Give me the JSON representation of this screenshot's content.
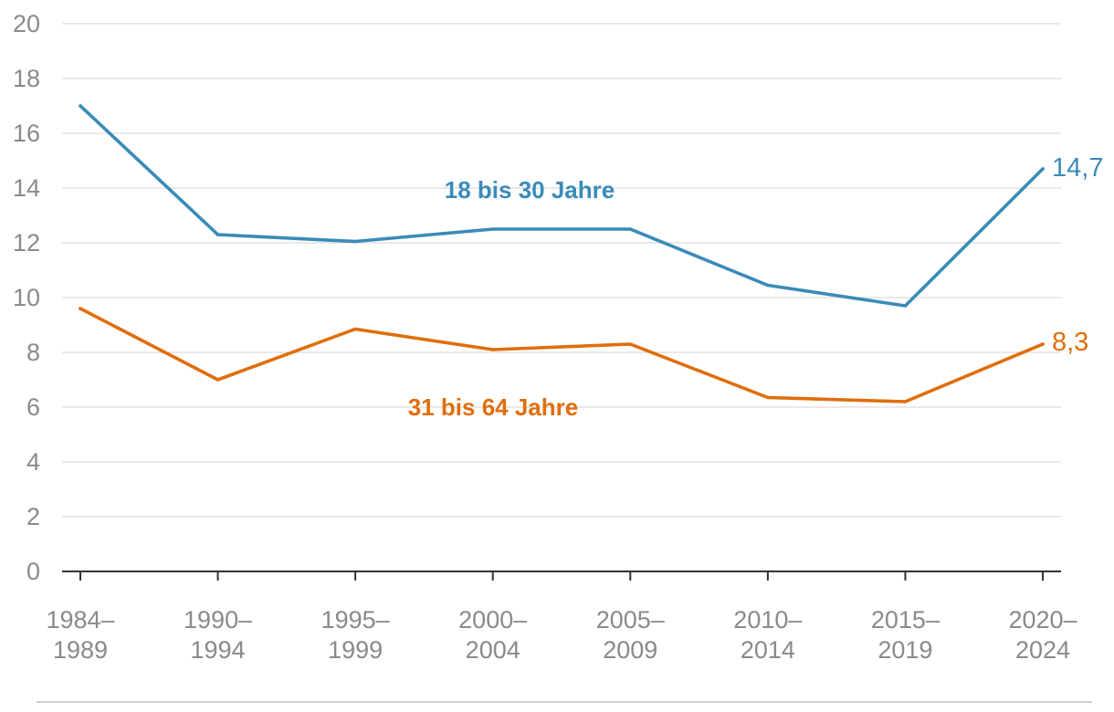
{
  "colors": {
    "series_young": "#3a8bb8",
    "series_adult": "#df6e0c",
    "grid": "#dcdcdc",
    "axis": "#333333",
    "tick_text": "#8a8a8a",
    "rule": "#cfcfcf"
  },
  "chart_data": {
    "type": "line",
    "categories": [
      [
        "1984–",
        "1989"
      ],
      [
        "1990–",
        "1994"
      ],
      [
        "1995–",
        "1999"
      ],
      [
        "2000–",
        "2004"
      ],
      [
        "2005–",
        "2009"
      ],
      [
        "2010–",
        "2014"
      ],
      [
        "2015–",
        "2019"
      ],
      [
        "2020–",
        "2024"
      ]
    ],
    "y_ticks": [
      "0",
      "2",
      "4",
      "6",
      "8",
      "10",
      "12",
      "14",
      "16",
      "18",
      "20"
    ],
    "ylim": [
      0,
      20
    ],
    "grid": true,
    "title": "",
    "xlabel": "",
    "ylabel": "",
    "series": [
      {
        "name": "18 bis 30 Jahre",
        "color_key": "series_young",
        "values": [
          17.0,
          12.3,
          12.05,
          12.5,
          12.5,
          10.45,
          9.7,
          14.7
        ],
        "end_label": "14,7"
      },
      {
        "name": "31 bis 64 Jahre",
        "color_key": "series_adult",
        "values": [
          9.6,
          7.0,
          8.85,
          8.1,
          8.3,
          6.35,
          6.2,
          8.3
        ],
        "end_label": "8,3"
      }
    ]
  }
}
